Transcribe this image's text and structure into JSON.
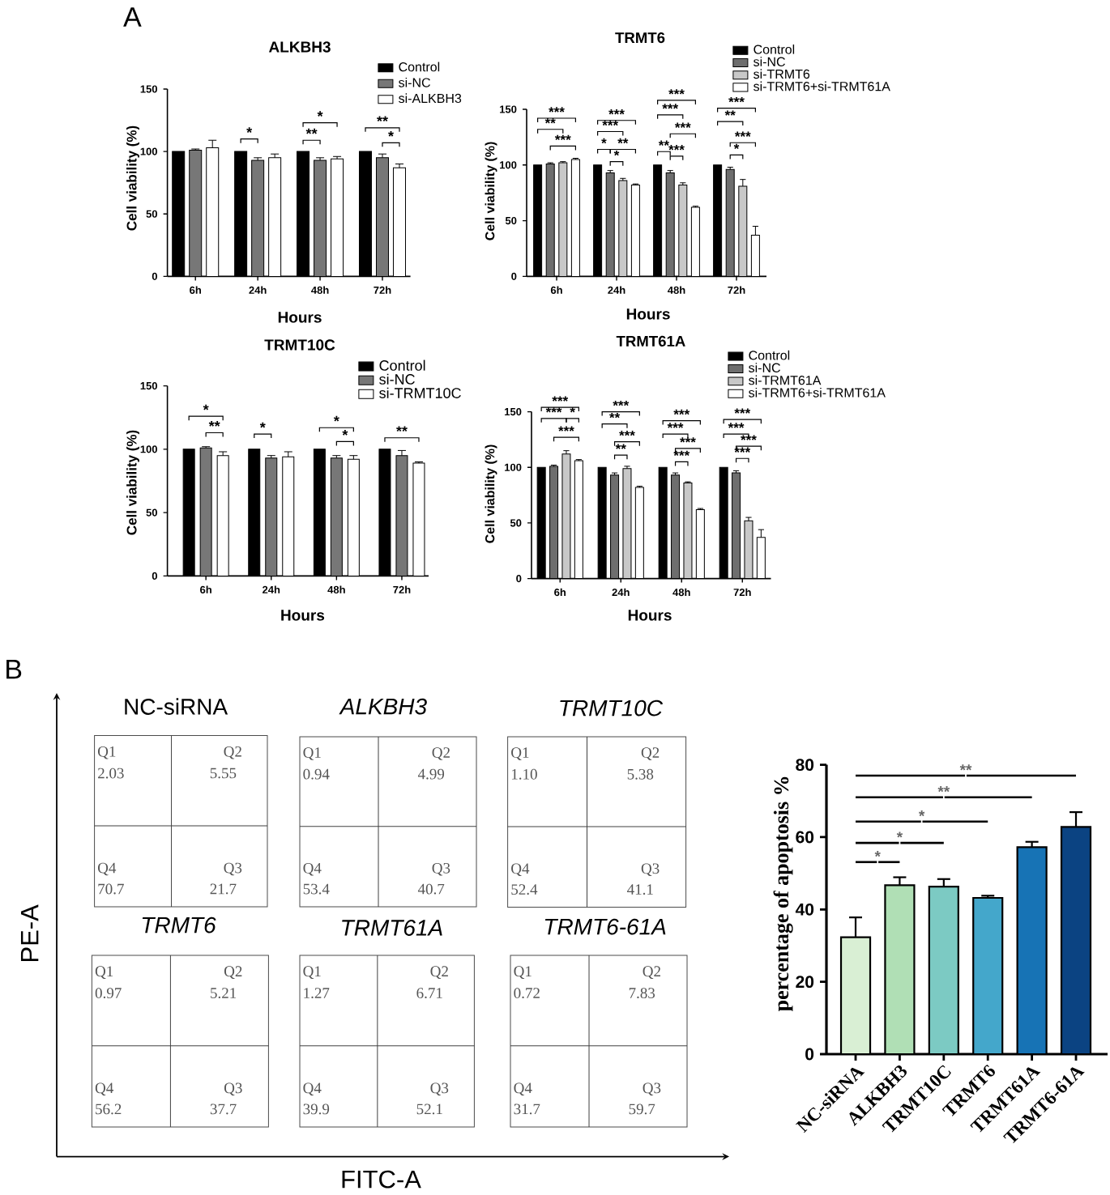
{
  "chart_data": [
    {
      "type": "bar",
      "title": "ALKBH3",
      "xlabel": "Hours",
      "ylabel": "Cell viability (%)",
      "categories": [
        "6h",
        "24h",
        "48h",
        "72h"
      ],
      "series": [
        {
          "name": "Control",
          "color": "#000000",
          "values": [
            100,
            100,
            100,
            100
          ]
        },
        {
          "name": "si-NC",
          "color": "#777777",
          "values": [
            101,
            93,
            93,
            95
          ],
          "errors": [
            1,
            2,
            2,
            3
          ]
        },
        {
          "name": "si-ALKBH3",
          "color": "#ffffff",
          "values": [
            103,
            95,
            94,
            87
          ],
          "errors": [
            6,
            3,
            2,
            3
          ]
        }
      ],
      "ylim": [
        0,
        150
      ],
      "yticks": [
        0,
        50,
        100,
        150
      ],
      "legend": "top right",
      "annotations": [
        "A",
        "*",
        "**",
        "*",
        "**",
        "*"
      ]
    },
    {
      "type": "bar",
      "title": "TRMT6",
      "xlabel": "Hours",
      "ylabel": "Cell viability (%)",
      "categories": [
        "6h",
        "24h",
        "48h",
        "72h"
      ],
      "series": [
        {
          "name": "Control",
          "color": "#000000",
          "values": [
            100,
            100,
            100,
            100
          ]
        },
        {
          "name": "si-NC",
          "color": "#6e6e6e",
          "values": [
            101,
            93,
            93,
            96
          ],
          "errors": [
            1,
            2,
            2,
            2
          ]
        },
        {
          "name": "si-TRMT6",
          "color": "#c8c8c8",
          "values": [
            102,
            86,
            82,
            81
          ],
          "errors": [
            1,
            2,
            2,
            6
          ]
        },
        {
          "name": "si-TRMT6+si-TRMT61A",
          "color": "#ffffff",
          "values": [
            105,
            82,
            62,
            37
          ],
          "errors": [
            1,
            1,
            1,
            8
          ]
        }
      ],
      "ylim": [
        0,
        150
      ],
      "yticks": [
        0,
        50,
        100,
        150
      ],
      "legend": "top right",
      "annotations": [
        "***",
        "**",
        "***",
        "*",
        "*",
        "**",
        "***",
        "***",
        "***",
        "**",
        "***",
        "***",
        "***",
        "*",
        "***",
        "**",
        "***"
      ]
    },
    {
      "type": "bar",
      "title": "TRMT10C",
      "xlabel": "Hours",
      "ylabel": "Cell viability (%)",
      "categories": [
        "6h",
        "24h",
        "48h",
        "72h"
      ],
      "series": [
        {
          "name": "Control",
          "color": "#000000",
          "values": [
            100,
            100,
            100,
            100
          ]
        },
        {
          "name": "si-NC",
          "color": "#777777",
          "values": [
            101,
            93,
            93,
            95
          ],
          "errors": [
            1,
            2,
            2,
            4
          ]
        },
        {
          "name": "si-TRMT10C",
          "color": "#ffffff",
          "values": [
            95,
            94,
            92,
            89
          ],
          "errors": [
            3,
            4,
            3,
            1
          ]
        }
      ],
      "ylim": [
        0,
        150
      ],
      "yticks": [
        0,
        50,
        100,
        150
      ],
      "legend": "top right",
      "annotations": [
        "**",
        "*",
        "*",
        "*",
        "*",
        "**"
      ]
    },
    {
      "type": "bar",
      "title": "TRMT61A",
      "xlabel": "Hours",
      "ylabel": "Cell viability (%)",
      "categories": [
        "6h",
        "24h",
        "48h",
        "72h"
      ],
      "series": [
        {
          "name": "Control",
          "color": "#000000",
          "values": [
            100,
            100,
            100,
            100
          ]
        },
        {
          "name": "si-NC",
          "color": "#6e6e6e",
          "values": [
            101,
            93,
            93,
            95
          ],
          "errors": [
            1,
            2,
            2,
            2
          ]
        },
        {
          "name": "si-TRMT61A",
          "color": "#c8c8c8",
          "values": [
            112,
            99,
            86,
            52
          ],
          "errors": [
            3,
            2,
            1,
            3
          ]
        },
        {
          "name": "si-TRMT6+si-TRMT61A",
          "color": "#ffffff",
          "values": [
            106,
            82,
            62,
            37
          ],
          "errors": [
            1,
            1,
            1,
            7
          ]
        }
      ],
      "ylim": [
        0,
        150
      ],
      "yticks": [
        0,
        50,
        100,
        150
      ],
      "legend": "top right",
      "annotations": [
        "***",
        "***",
        "*",
        "***",
        "**",
        "***",
        "**",
        "***",
        "***",
        "***",
        "***",
        "***",
        "***",
        "***",
        "***",
        "***"
      ]
    },
    {
      "type": "other",
      "xlabel": "FITC-A",
      "ylabel": "PE-A",
      "annotations": [
        "B"
      ]
    },
    {
      "type": "other",
      "title": "NC-siRNA",
      "annotations": [
        "Q1",
        "2.03",
        "Q2",
        "5.55",
        "Q4",
        "70.7",
        "Q3",
        "21.7"
      ]
    },
    {
      "type": "other",
      "title": "ALKBH3",
      "annotations": [
        "Q1",
        "0.94",
        "Q2",
        "4.99",
        "Q4",
        "53.4",
        "Q3",
        "40.7"
      ]
    },
    {
      "type": "other",
      "title": "TRMT10C",
      "annotations": [
        "Q1",
        "1.10",
        "Q2",
        "5.38",
        "Q4",
        "52.4",
        "Q3",
        "41.1"
      ]
    },
    {
      "type": "other",
      "title": "TRMT6",
      "annotations": [
        "Q1",
        "0.97",
        "Q2",
        "5.21",
        "Q4",
        "56.2",
        "Q3",
        "37.7"
      ]
    },
    {
      "type": "other",
      "title": "TRMT61A",
      "annotations": [
        "Q1",
        "1.27",
        "Q2",
        "6.71",
        "Q4",
        "39.9",
        "Q3",
        "52.1"
      ]
    },
    {
      "type": "other",
      "title": "TRMT6-61A",
      "annotations": [
        "Q1",
        "0.72",
        "Q2",
        "7.83",
        "Q4",
        "31.7",
        "Q3",
        "59.7"
      ]
    },
    {
      "type": "bar",
      "ylabel": "percentage of apoptosis %",
      "categories": [
        "NC-siRNA",
        "ALKBH3",
        "TRMT10C",
        "TRMT6",
        "TRMT61A",
        "TRMT6-61A"
      ],
      "values": [
        32.3,
        46.7,
        46.3,
        43.2,
        57.2,
        62.8
      ],
      "errors": [
        5.5,
        2.2,
        2.1,
        0.6,
        1.5,
        4.1
      ],
      "colors": [
        "#d9efd4",
        "#b0dfb5",
        "#7ccac3",
        "#44a7cb",
        "#1773b5",
        "#0b4382"
      ],
      "ylim": [
        0,
        80
      ],
      "yticks": [
        0,
        20,
        40,
        60,
        80
      ],
      "annotations": [
        "*",
        "*",
        "*",
        "**",
        "**"
      ]
    }
  ]
}
